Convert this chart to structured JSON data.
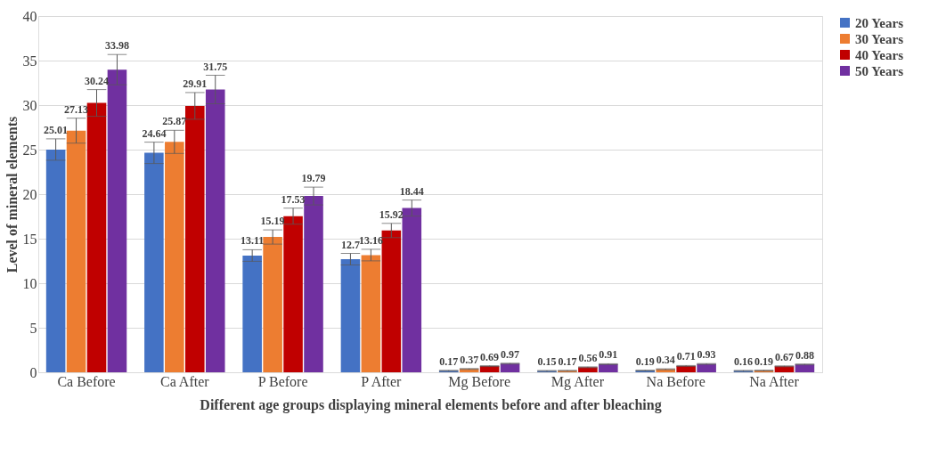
{
  "chart_data": {
    "type": "bar",
    "xlabel": "Different age groups displaying mineral elements before and after bleaching",
    "ylabel": "Level of mineral elements",
    "categories": [
      "Ca Before",
      "Ca After",
      "P Before",
      "P After",
      "Mg Before",
      "Mg After",
      "Na Before",
      "Na After"
    ],
    "series": [
      {
        "name": "20 Years",
        "color": "#4472c4",
        "values": [
          25.01,
          24.64,
          13.11,
          12.7,
          0.17,
          0.15,
          0.19,
          0.16
        ],
        "errors": [
          1.2,
          1.2,
          0.65,
          0.65,
          0.05,
          0.05,
          0.05,
          0.05
        ]
      },
      {
        "name": "30 Years",
        "color": "#ed7d31",
        "values": [
          27.13,
          25.87,
          15.19,
          13.16,
          0.37,
          0.17,
          0.34,
          0.19
        ],
        "errors": [
          1.4,
          1.3,
          0.8,
          0.65,
          0.05,
          0.05,
          0.05,
          0.05
        ]
      },
      {
        "name": "40 Years",
        "color": "#c00000",
        "values": [
          30.24,
          29.91,
          17.53,
          15.92,
          0.69,
          0.56,
          0.71,
          0.67
        ],
        "errors": [
          1.5,
          1.5,
          0.9,
          0.8,
          0.05,
          0.05,
          0.05,
          0.05
        ]
      },
      {
        "name": "50 Years",
        "color": "#7030a0",
        "values": [
          33.98,
          31.75,
          19.79,
          18.44,
          0.97,
          0.91,
          0.93,
          0.88
        ],
        "errors": [
          1.7,
          1.6,
          1.0,
          0.9,
          0.05,
          0.05,
          0.05,
          0.05
        ]
      }
    ],
    "ylim": [
      0,
      40
    ],
    "yticks": [
      0,
      5,
      10,
      15,
      20,
      25,
      30,
      35,
      40
    ],
    "grid": "y",
    "legend": "right",
    "data_labels": true
  }
}
